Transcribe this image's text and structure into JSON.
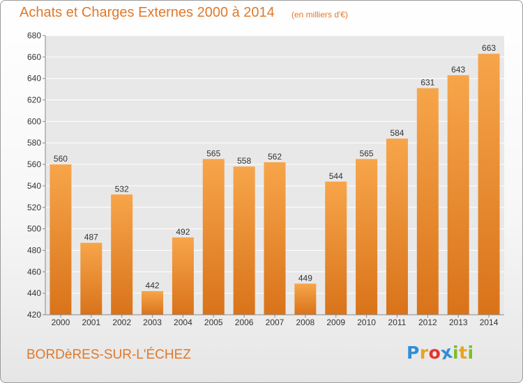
{
  "header": {
    "title": "Achats et Charges Externes 2000 à 2014",
    "subtitle": "(en milliers d'€)"
  },
  "footer": {
    "commune": "BORDèRES-SUR-L'ÉCHEZ",
    "logo_letters": [
      "P",
      "r",
      "o",
      "x",
      "i",
      "t",
      "i"
    ],
    "logo_colors": [
      "#2f8ed8",
      "#e9a321",
      "#e3342f",
      "#2f8ed8",
      "#7cbd2a",
      "#e9a321",
      "#7cbd2a"
    ]
  },
  "colors": {
    "accent": "#e0782a",
    "bar_top": "#f7a54a",
    "bar_bottom": "#d9731a",
    "plot_bg": "#e8e8e8",
    "grid": "#ffffff"
  },
  "chart_data": {
    "type": "bar",
    "title": "Achats et Charges Externes 2000 à 2014",
    "subtitle": "(en milliers d'€)",
    "categories": [
      "2000",
      "2001",
      "2002",
      "2003",
      "2004",
      "2005",
      "2006",
      "2007",
      "2008",
      "2009",
      "2010",
      "2011",
      "2012",
      "2013",
      "2014"
    ],
    "values": [
      560,
      487,
      532,
      442,
      492,
      565,
      558,
      562,
      449,
      544,
      565,
      584,
      631,
      643,
      663
    ],
    "ylim": [
      420,
      680
    ],
    "yticks": [
      420,
      440,
      460,
      480,
      500,
      520,
      540,
      560,
      580,
      600,
      620,
      640,
      660,
      680
    ],
    "grid": true,
    "data_labels": true
  }
}
